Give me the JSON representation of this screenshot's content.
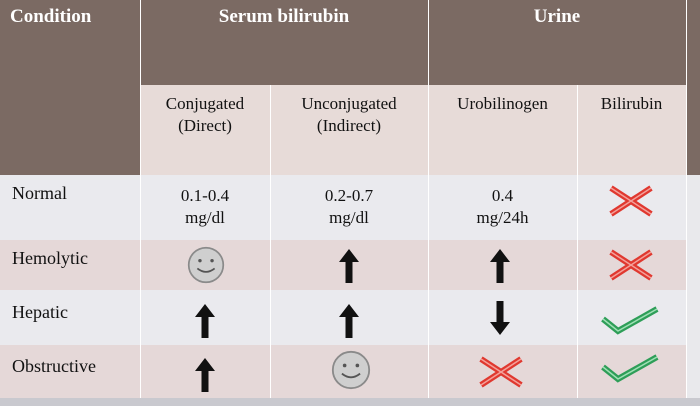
{
  "header": {
    "condition": "Condition",
    "serum_bilirubin": "Serum bilirubin",
    "urine": "Urine"
  },
  "subheader": [
    [
      "Conjugated",
      "(Direct)"
    ],
    [
      "Unconjugated",
      "(Indirect)"
    ],
    [
      "Urobilinogen"
    ],
    [
      "Bilirubin"
    ]
  ],
  "rows": [
    {
      "condition": "Normal",
      "values": [
        [
          "0.1-0.4",
          "mg/dl"
        ],
        [
          "0.2-0.7",
          "mg/dl"
        ],
        [
          "0.4",
          "mg/24h"
        ]
      ]
    },
    {
      "condition": "Hemolytic"
    },
    {
      "condition": "Hepatic"
    },
    {
      "condition": "Obstructive"
    }
  ]
}
